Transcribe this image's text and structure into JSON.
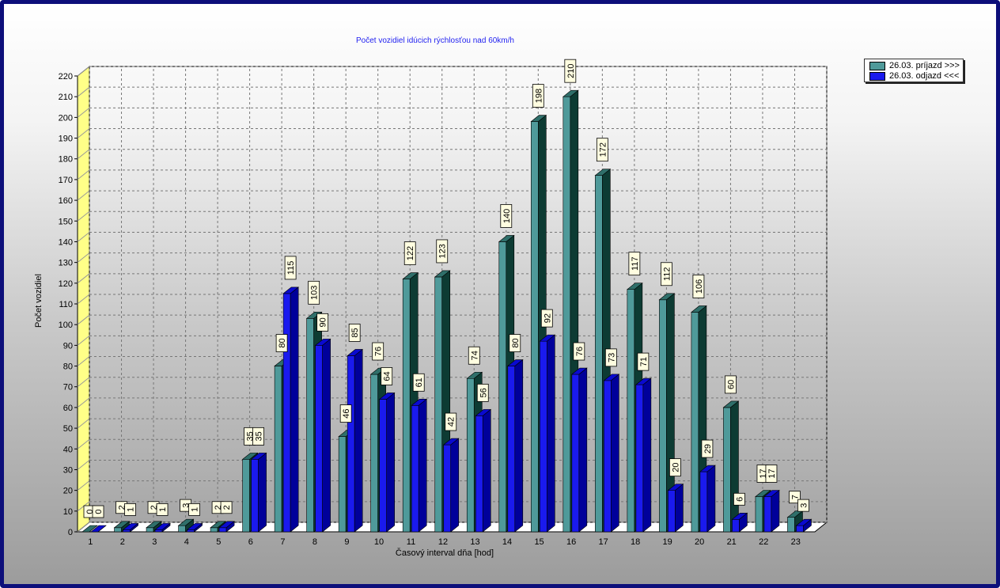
{
  "colors": {
    "frame": "#0d0f7a",
    "arrival_front": "#4f9a9a",
    "arrival_side": "#0d3b33",
    "departure_front": "#1a1aee",
    "departure_side": "#00009a",
    "wall_left": "#ffff88",
    "title": "#1f1ff0"
  },
  "legend": {
    "items": [
      {
        "label": "26.03.  príjazd >>>",
        "color": "#4f9a9a"
      },
      {
        "label": "26.03.  odjazd <<<",
        "color": "#1a1aee"
      }
    ]
  },
  "chart_data": {
    "type": "bar",
    "title": "Počet vozidiel idúcich rýchlosťou nad 60km/h",
    "xlabel": "Časový interval dňa [hod]",
    "ylabel": "Počet vozidiel",
    "ylim": [
      0,
      220
    ],
    "yticks": [
      0,
      10,
      20,
      30,
      40,
      50,
      60,
      70,
      80,
      90,
      100,
      110,
      120,
      130,
      140,
      150,
      160,
      170,
      180,
      190,
      200,
      210,
      220
    ],
    "grid": true,
    "legend_position": "top-right",
    "categories": [
      "1",
      "2",
      "3",
      "4",
      "5",
      "6",
      "7",
      "8",
      "9",
      "10",
      "11",
      "12",
      "13",
      "14",
      "15",
      "16",
      "17",
      "18",
      "19",
      "20",
      "21",
      "22",
      "23"
    ],
    "series": [
      {
        "name": "26.03.  príjazd >>>",
        "values": [
          0,
          2,
          2,
          3,
          2,
          35,
          80,
          103,
          46,
          76,
          122,
          123,
          74,
          140,
          198,
          210,
          172,
          117,
          112,
          106,
          60,
          17,
          7
        ]
      },
      {
        "name": "26.03.  odjazd <<<",
        "values": [
          0,
          1,
          1,
          1,
          2,
          35,
          115,
          90,
          85,
          64,
          61,
          42,
          56,
          80,
          92,
          76,
          73,
          71,
          20,
          29,
          6,
          17,
          3
        ]
      }
    ]
  }
}
